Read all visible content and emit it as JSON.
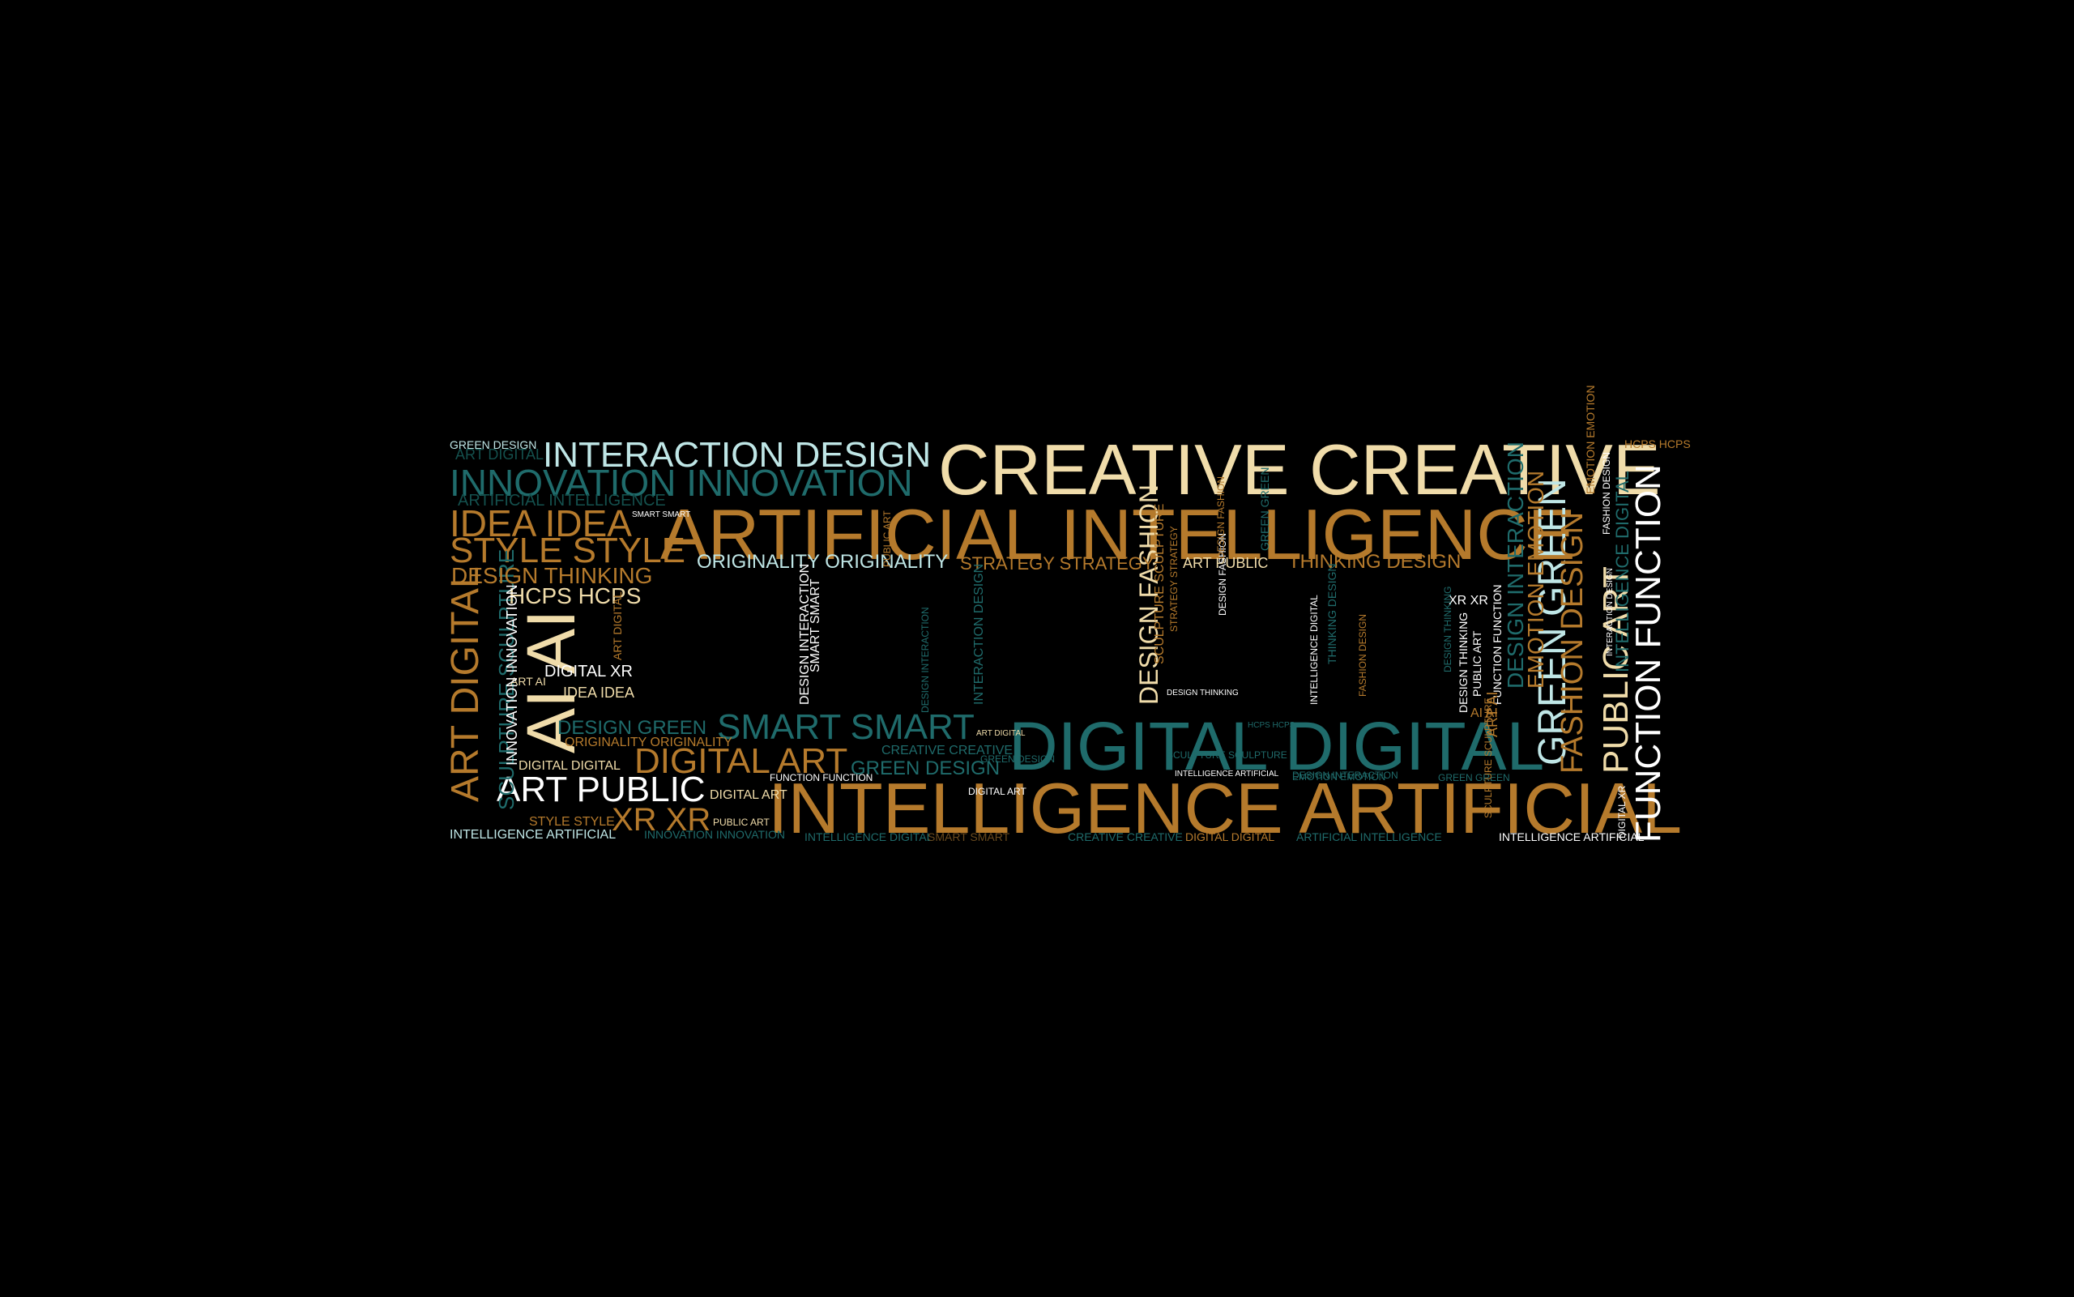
{
  "palette": {
    "background": "#000000",
    "gold": "#b57a2c",
    "teal": "#1f6b6b",
    "cream": "#f0dcaa",
    "light_cyan": "#bfe6e6",
    "white": "#ffffff",
    "dim_gold": "#6a4a1e",
    "dim_teal": "#14504d"
  },
  "words": [
    {
      "text": "CREATIVE CREATIVE",
      "color": "cream",
      "size": 88,
      "rot": 0
    },
    {
      "text": "ARTIFICIAL INTELLIGENCE",
      "color": "gold",
      "size": 88,
      "rot": 0
    },
    {
      "text": "INTELLIGENCE ARTIFICIAL",
      "color": "gold",
      "size": 88,
      "rot": 0
    },
    {
      "text": "DIGITAL DIGITAL",
      "color": "teal",
      "size": 84,
      "rot": 0
    },
    {
      "text": "INTERACTION DESIGN",
      "color": "light_cyan",
      "size": 44,
      "rot": 0
    },
    {
      "text": "INNOVATION INNOVATION",
      "color": "teal",
      "size": 46,
      "rot": 0
    },
    {
      "text": "IDEA IDEA",
      "color": "gold",
      "size": 46,
      "rot": 0
    },
    {
      "text": "STYLE STYLE",
      "color": "gold",
      "size": 44,
      "rot": 0
    },
    {
      "text": "SMART SMART",
      "color": "teal",
      "size": 44,
      "rot": 0
    },
    {
      "text": "DIGITAL ART",
      "color": "gold",
      "size": 44,
      "rot": 0
    },
    {
      "text": "ART PUBLIC",
      "color": "white",
      "size": 44,
      "rot": 0
    },
    {
      "text": "XR XR",
      "color": "gold",
      "size": 40,
      "rot": 0
    },
    {
      "text": "AI AI",
      "color": "cream",
      "size": 84,
      "rot": -90
    },
    {
      "text": "ART DIGITAL",
      "color": "gold",
      "size": 48,
      "rot": -90
    },
    {
      "text": "GREEN GREEN",
      "color": "light_cyan",
      "size": 48,
      "rot": -90
    },
    {
      "text": "FASHION DESIGN",
      "color": "gold",
      "size": 38,
      "rot": -90
    },
    {
      "text": "PUBLIC ART",
      "color": "cream",
      "size": 44,
      "rot": -90
    },
    {
      "text": "FUNCTION FUNCTION",
      "color": "white",
      "size": 44,
      "rot": -90
    },
    {
      "text": "DESIGN FASHION",
      "color": "cream",
      "size": 32,
      "rot": -90
    },
    {
      "text": "EMOTION EMOTION",
      "color": "gold",
      "size": 28,
      "rot": -90
    },
    {
      "text": "DESIGN INTERACTION",
      "color": "teal",
      "size": 28,
      "rot": -90
    },
    {
      "text": "SCULPTURE SCULPTURE",
      "color": "teal",
      "size": 26,
      "rot": -90
    },
    {
      "text": "INTELLIGENCE DIGITAL",
      "color": "teal",
      "size": 22,
      "rot": -90
    },
    {
      "text": "ORIGINALITY ORIGINALITY",
      "color": "light_cyan",
      "size": 24,
      "rot": 0
    },
    {
      "text": "STRATEGY STRATEGY",
      "color": "gold",
      "size": 22,
      "rot": 0
    },
    {
      "text": "ART PUBLIC",
      "color": "cream",
      "size": 18,
      "rot": 0
    },
    {
      "text": "THINKING DESIGN",
      "color": "gold",
      "size": 24,
      "rot": 0
    },
    {
      "text": "DESIGN THINKING",
      "color": "gold",
      "size": 28,
      "rot": 0
    },
    {
      "text": "HCPS HCPS",
      "color": "cream",
      "size": 28,
      "rot": 0
    },
    {
      "text": "DESIGN GREEN",
      "color": "teal",
      "size": 24,
      "rot": 0
    },
    {
      "text": "GREEN DESIGN",
      "color": "teal",
      "size": 24,
      "rot": 0
    },
    {
      "text": "DIGITAL XR",
      "color": "white",
      "size": 20,
      "rot": 0
    },
    {
      "text": "IDEA IDEA",
      "color": "cream",
      "size": 18,
      "rot": 0
    },
    {
      "text": "ARTIFICIAL INTELLIGENCE",
      "color": "dim_teal",
      "size": 20,
      "rot": 0
    },
    {
      "text": "ART DIGITAL",
      "color": "dim_teal",
      "size": 18,
      "rot": 0
    },
    {
      "text": "GREEN DESIGN",
      "color": "light_cyan",
      "size": 14,
      "rot": 0
    },
    {
      "text": "HCPS HCPS",
      "color": "gold",
      "size": 14,
      "rot": 0
    },
    {
      "text": "INTELLIGENCE ARTIFICIAL",
      "color": "light_cyan",
      "size": 16,
      "rot": 0
    },
    {
      "text": "INNOVATION INNOVATION",
      "color": "teal",
      "size": 14,
      "rot": 0
    },
    {
      "text": "STYLE STYLE",
      "color": "gold",
      "size": 16,
      "rot": 0
    },
    {
      "text": "DIGITAL ART",
      "color": "cream",
      "size": 16,
      "rot": 0
    },
    {
      "text": "DIGITAL DIGITAL",
      "color": "cream",
      "size": 16,
      "rot": 0
    },
    {
      "text": "ORIGINALITY ORIGINALITY",
      "color": "gold",
      "size": 16,
      "rot": 0
    },
    {
      "text": "INTELLIGENCE DIGITAL",
      "color": "teal",
      "size": 14,
      "rot": 0
    },
    {
      "text": "SMART SMART",
      "color": "dim_gold",
      "size": 14,
      "rot": 0
    },
    {
      "text": "CREATIVE CREATIVE",
      "color": "teal",
      "size": 14,
      "rot": 0
    },
    {
      "text": "DIGITAL DIGITAL",
      "color": "gold",
      "size": 14,
      "rot": 0
    },
    {
      "text": "ARTIFICIAL INTELLIGENCE",
      "color": "teal",
      "size": 14,
      "rot": 0
    },
    {
      "text": "INTELLIGENCE ARTIFICIAL",
      "color": "white",
      "size": 14,
      "rot": 0
    },
    {
      "text": "CREATIVE CREATIVE",
      "color": "teal",
      "size": 16,
      "rot": 0
    },
    {
      "text": "GREEN DESIGN",
      "color": "teal",
      "size": 12,
      "rot": 0
    },
    {
      "text": "FUNCTION FUNCTION",
      "color": "white",
      "size": 12,
      "rot": 0
    },
    {
      "text": "DIGITAL ART",
      "color": "white",
      "size": 12,
      "rot": 0
    },
    {
      "text": "PUBLIC ART",
      "color": "cream",
      "size": 12,
      "rot": 0
    },
    {
      "text": "ART AI",
      "color": "cream",
      "size": 14,
      "rot": 0
    },
    {
      "text": "DESIGN INTERACTION",
      "color": "teal",
      "size": 12,
      "rot": 0
    },
    {
      "text": "XR XR",
      "color": "white",
      "size": 16,
      "rot": 0
    },
    {
      "text": "AI AI",
      "color": "gold",
      "size": 16,
      "rot": 0
    },
    {
      "text": "SMART SMART",
      "color": "white",
      "size": 10,
      "rot": 0
    },
    {
      "text": "ART DIGITAL",
      "color": "cream",
      "size": 10,
      "rot": 0
    },
    {
      "text": "EMOTION EMOTION",
      "color": "teal",
      "size": 12,
      "rot": 0
    },
    {
      "text": "GREEN GREEN",
      "color": "teal",
      "size": 12,
      "rot": 0
    },
    {
      "text": "INTELLIGENCE ARTIFICIAL",
      "color": "white",
      "size": 10,
      "rot": 0
    },
    {
      "text": "SCULPTURE SCULPTURE",
      "color": "teal",
      "size": 12,
      "rot": 0
    },
    {
      "text": "HCPS HCPS",
      "color": "teal",
      "size": 10,
      "rot": 0
    },
    {
      "text": "DESIGN THINKING",
      "color": "white",
      "size": 10,
      "rot": 0
    },
    {
      "text": "INNOVATION INNOVATION",
      "color": "white",
      "size": 18,
      "rot": -90
    },
    {
      "text": "DESIGN INTERACTION",
      "color": "white",
      "size": 16,
      "rot": -90
    },
    {
      "text": "SMART SMART",
      "color": "white",
      "size": 16,
      "rot": -90
    },
    {
      "text": "INTERACTION DESIGN",
      "color": "teal",
      "size": 16,
      "rot": -90
    },
    {
      "text": "SCULPTURE SCULPTURE",
      "color": "gold",
      "size": 16,
      "rot": -90
    },
    {
      "text": "STRATEGY STRATEGY",
      "color": "gold",
      "size": 12,
      "rot": -90
    },
    {
      "text": "DESIGN FASHION",
      "color": "white",
      "size": 12,
      "rot": -90
    },
    {
      "text": "GREEN GREEN",
      "color": "teal",
      "size": 14,
      "rot": -90
    },
    {
      "text": "INTELLIGENCE DIGITAL",
      "color": "white",
      "size": 12,
      "rot": -90
    },
    {
      "text": "THINKING DESIGN",
      "color": "teal",
      "size": 14,
      "rot": -90
    },
    {
      "text": "FASHION DESIGN",
      "color": "gold",
      "size": 12,
      "rot": -90
    },
    {
      "text": "DESIGN THINKING",
      "color": "white",
      "size": 14,
      "rot": -90
    },
    {
      "text": "PUBLIC ART",
      "color": "white",
      "size": 14,
      "rot": -90
    },
    {
      "text": "FUNCTION FUNCTION",
      "color": "white",
      "size": 14,
      "rot": -90
    },
    {
      "text": "ART AI",
      "color": "gold",
      "size": 18,
      "rot": -90
    },
    {
      "text": "EMOTION EMOTION",
      "color": "gold",
      "size": 14,
      "rot": -90
    },
    {
      "text": "FASHION DESIGN",
      "color": "white",
      "size": 12,
      "rot": -90
    },
    {
      "text": "SCULPTURE SCULPTURE",
      "color": "gold",
      "size": 12,
      "rot": -90
    },
    {
      "text": "DESIGN THINKING",
      "color": "teal",
      "size": 12,
      "rot": -90
    },
    {
      "text": "INTERACTION DESIGN",
      "color": "white",
      "size": 10,
      "rot": -90
    },
    {
      "text": "DIGITAL XR",
      "color": "white",
      "size": 12,
      "rot": -90
    },
    {
      "text": "ART DIGITAL",
      "color": "gold",
      "size": 14,
      "rot": -90
    },
    {
      "text": "PUBLIC ART",
      "color": "gold",
      "size": 12,
      "rot": -90
    },
    {
      "text": "DESIGN FASHION",
      "color": "gold",
      "size": 12,
      "rot": -90
    },
    {
      "text": "DESIGN INTERACTION",
      "color": "teal",
      "size": 12,
      "rot": -90
    }
  ]
}
